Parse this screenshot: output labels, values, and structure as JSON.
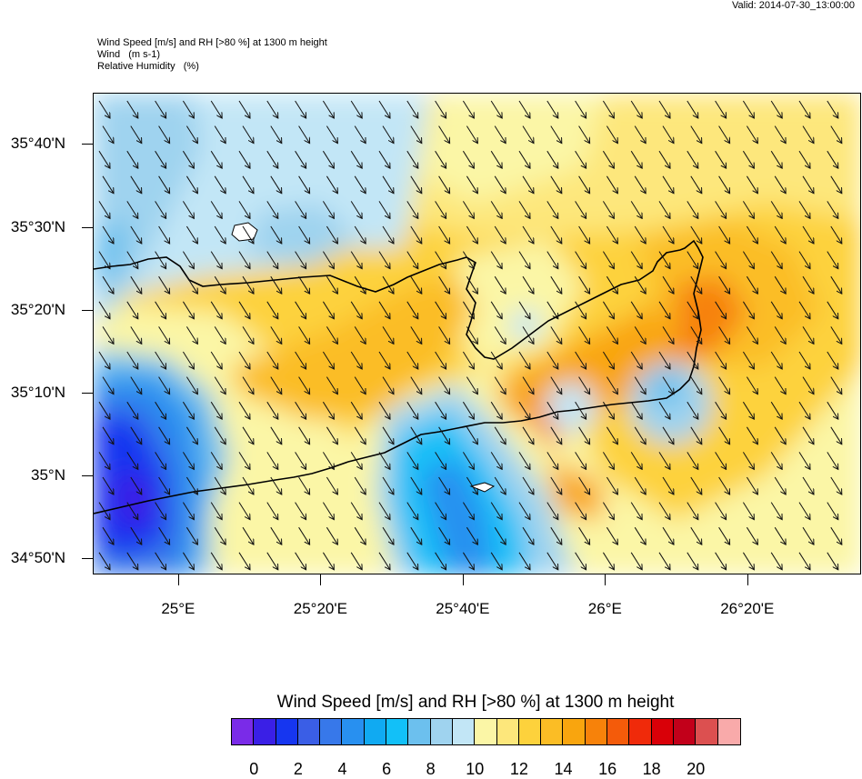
{
  "valid_time": "Valid: 2014-07-30_13:00:00",
  "header": {
    "line1": "Wind Speed [m/s] and RH [>80 %] at 1300 m height",
    "line2": "Wind   (m s-1)",
    "line3": "Relative Humidity   (%)"
  },
  "map": {
    "region": "Crete",
    "lon_range": [
      24.8,
      26.6
    ],
    "lat_range": [
      34.8,
      35.77
    ],
    "lat_labels": [
      {
        "text": "35°40'N",
        "lat": 35.6667
      },
      {
        "text": "35°30'N",
        "lat": 35.5
      },
      {
        "text": "35°20'N",
        "lat": 35.3333
      },
      {
        "text": "35°10'N",
        "lat": 35.1667
      },
      {
        "text": "35°N",
        "lat": 35.0
      },
      {
        "text": "34°50'N",
        "lat": 34.8333
      }
    ],
    "lon_labels": [
      {
        "text": "25°E",
        "lon": 25.0
      },
      {
        "text": "25°20'E",
        "lon": 25.3333
      },
      {
        "text": "25°40'E",
        "lon": 25.6667
      },
      {
        "text": "26°E",
        "lon": 26.0
      },
      {
        "text": "26°20'E",
        "lon": 26.3333
      }
    ],
    "wind_direction": "northwesterly (arrows pointing SE)"
  },
  "colorbar": {
    "title": "Wind Speed [m/s] and RH [>80 %] at 1300 m height",
    "colors": [
      "#7a2be8",
      "#3a1fe6",
      "#1636f0",
      "#3a5ee6",
      "#3778ea",
      "#2890f0",
      "#10aaf2",
      "#12c0f8",
      "#6cc0ee",
      "#9fd3ef",
      "#c2e6f6",
      "#fbf6a6",
      "#fde77b",
      "#fdd23c",
      "#fbbd25",
      "#f9a50e",
      "#f7820a",
      "#f45b0a",
      "#f02a0a",
      "#d90008",
      "#c2001a",
      "#dc5050",
      "#f9aaaa"
    ],
    "ticks": [
      "0",
      "2",
      "4",
      "6",
      "8",
      "10",
      "12",
      "14",
      "16",
      "18",
      "20"
    ]
  }
}
